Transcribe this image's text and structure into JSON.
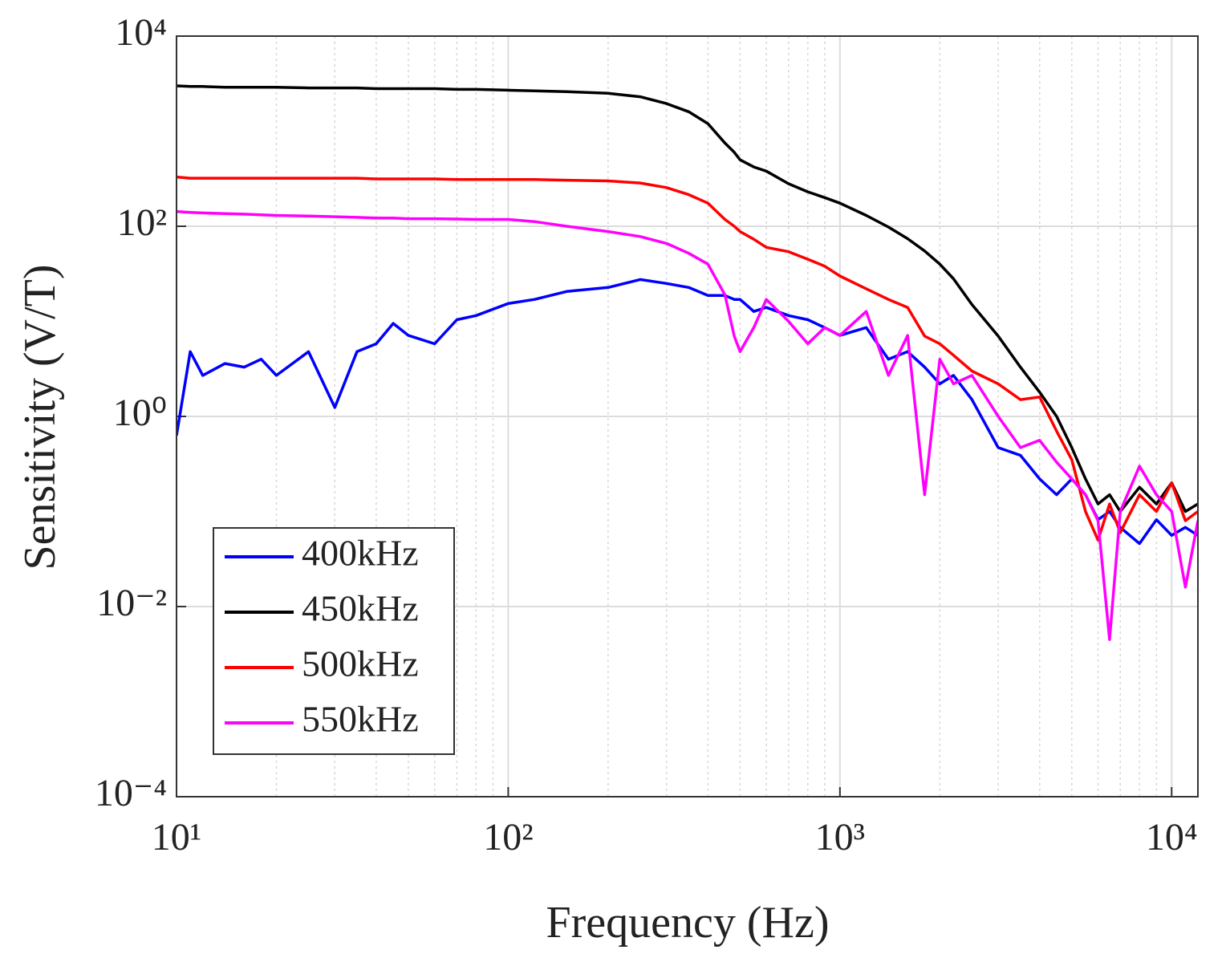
{
  "chart_data": {
    "type": "line",
    "xlabel": "Frequency (Hz)",
    "ylabel": "Sensitivity (V/T)",
    "xscale": "log",
    "yscale": "log",
    "grid": true,
    "minor_grid_x": true,
    "legend": "lower left",
    "xlim": [
      10,
      12000
    ],
    "ylim": [
      0.0001,
      10000
    ],
    "xticks": [
      {
        "value": 10,
        "label": "10¹"
      },
      {
        "value": 100,
        "label": "10²"
      },
      {
        "value": 1000,
        "label": "10³"
      },
      {
        "value": 10000,
        "label": "10⁴"
      }
    ],
    "yticks": [
      {
        "value": 0.0001,
        "label": "10⁻⁴"
      },
      {
        "value": 0.01,
        "label": "10⁻²"
      },
      {
        "value": 1,
        "label": "10⁰"
      },
      {
        "value": 100,
        "label": "10²"
      },
      {
        "value": 10000,
        "label": "10⁴"
      }
    ],
    "x": [
      10,
      11,
      12,
      14,
      16,
      18,
      20,
      25,
      30,
      35,
      40,
      45,
      50,
      60,
      70,
      80,
      100,
      120,
      150,
      200,
      250,
      300,
      350,
      400,
      450,
      480,
      500,
      550,
      600,
      700,
      800,
      900,
      1000,
      1200,
      1400,
      1600,
      1800,
      2000,
      2200,
      2500,
      3000,
      3500,
      4000,
      4500,
      5000,
      5500,
      6000,
      6500,
      7000,
      8000,
      9000,
      10000,
      11000,
      12000
    ],
    "series": [
      {
        "name": "400kHz",
        "color": "#0000ff",
        "values": [
          0.63,
          4.8,
          2.7,
          3.6,
          3.3,
          4.0,
          2.7,
          4.8,
          1.24,
          4.8,
          5.8,
          9.5,
          7.1,
          5.8,
          10.4,
          11.5,
          15.4,
          17,
          20.6,
          22.7,
          27.5,
          25,
          22.7,
          18.7,
          18.7,
          17,
          17,
          12.7,
          14,
          11.5,
          10.4,
          8.6,
          7.1,
          8.6,
          4.0,
          4.8,
          3.3,
          2.2,
          2.7,
          1.5,
          0.47,
          0.39,
          0.22,
          0.15,
          0.22,
          0.15,
          0.082,
          0.1,
          0.068,
          0.046,
          0.082,
          0.056,
          0.068,
          0.056
        ]
      },
      {
        "name": "450kHz",
        "color": "#000000",
        "values": [
          3000,
          2950,
          2950,
          2900,
          2900,
          2900,
          2900,
          2850,
          2850,
          2850,
          2800,
          2800,
          2800,
          2800,
          2750,
          2750,
          2700,
          2650,
          2600,
          2500,
          2300,
          1950,
          1600,
          1200,
          750,
          600,
          500,
          420,
          380,
          280,
          230,
          200,
          175,
          130,
          98,
          74,
          55,
          40,
          28,
          15,
          7,
          3.3,
          1.8,
          1.0,
          0.47,
          0.22,
          0.12,
          0.15,
          0.1,
          0.18,
          0.12,
          0.2,
          0.1,
          0.12
        ]
      },
      {
        "name": "500kHz",
        "color": "#ff0000",
        "values": [
          330,
          320,
          320,
          320,
          320,
          320,
          320,
          320,
          320,
          320,
          315,
          315,
          315,
          315,
          310,
          310,
          310,
          310,
          305,
          300,
          285,
          255,
          215,
          175,
          118,
          100,
          88,
          73,
          60,
          54,
          45,
          38,
          30,
          22,
          17,
          14,
          7,
          5.8,
          4.4,
          3,
          2.2,
          1.5,
          1.6,
          0.7,
          0.35,
          0.1,
          0.05,
          0.12,
          0.06,
          0.15,
          0.1,
          0.2,
          0.08,
          0.1
        ]
      },
      {
        "name": "550kHz",
        "color": "#ff00ff",
        "values": [
          143,
          140,
          138,
          136,
          134,
          132,
          130,
          128,
          126,
          124,
          122,
          122,
          120,
          120,
          119,
          118,
          118,
          112,
          100,
          88,
          78,
          66,
          52,
          40,
          19,
          7,
          4.8,
          8.6,
          17,
          10,
          5.8,
          8.6,
          7.1,
          12.7,
          2.7,
          7.1,
          0.15,
          4.0,
          2.2,
          2.7,
          1.0,
          0.47,
          0.56,
          0.33,
          0.22,
          0.15,
          0.08,
          0.0045,
          0.1,
          0.3,
          0.15,
          0.1,
          0.016,
          0.08
        ]
      }
    ]
  }
}
